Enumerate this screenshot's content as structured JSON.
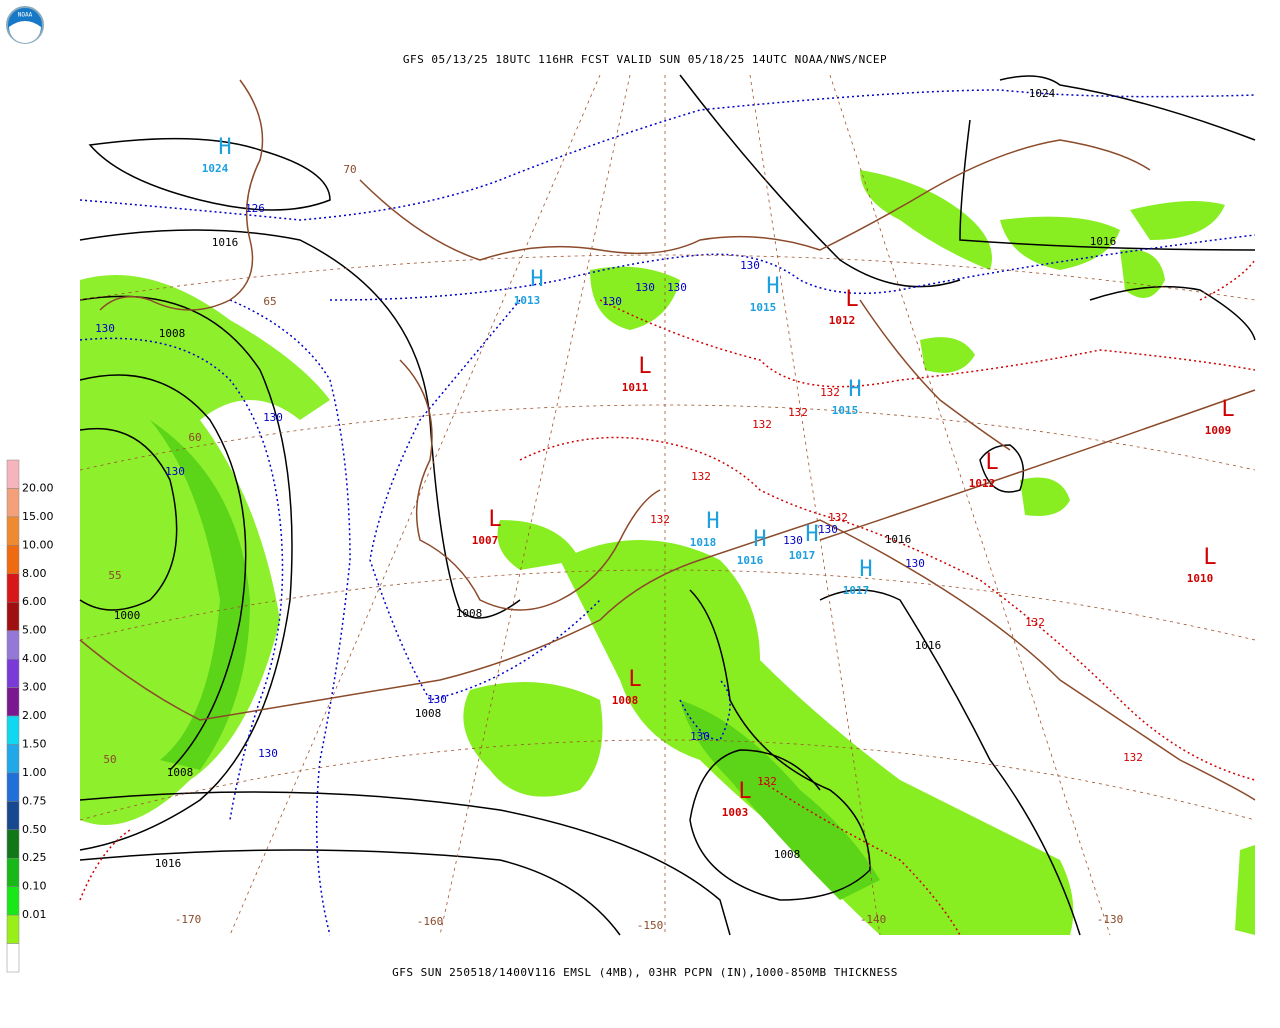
{
  "header": {
    "title": "GFS 05/13/25 18UTC 116HR FCST VALID SUN 05/18/25 14UTC NOAA/NWS/NCEP",
    "logo": "NOAA"
  },
  "footer": {
    "caption": "GFS SUN 250518/1400V116 EMSL (4MB), 03HR PCPN (IN),1000-850MB THICKNESS"
  },
  "legend": {
    "labels": [
      "20.00",
      "15.00",
      "10.00",
      "8.00",
      "6.00",
      "5.00",
      "4.00",
      "3.00",
      "2.00",
      "1.50",
      "1.00",
      "0.75",
      "0.50",
      "0.25",
      "0.10",
      "0.01"
    ],
    "colors": [
      "#f6b5bd",
      "#f4a07a",
      "#f08a30",
      "#f06a10",
      "#d81818",
      "#a01010",
      "#9478d8",
      "#7a3ad8",
      "#7a1890",
      "#10d8f0",
      "#20a8e8",
      "#2070d8",
      "#184890",
      "#107818",
      "#18b818",
      "#18e818",
      "#98f018",
      "#ffffff"
    ]
  },
  "map": {
    "pressure_centers": [
      {
        "letter": "H",
        "value": "1024"
      },
      {
        "letter": "H",
        "value": "1013"
      },
      {
        "letter": "H",
        "value": "1015"
      },
      {
        "letter": "L",
        "value": "1012"
      },
      {
        "letter": "L",
        "value": "1011"
      },
      {
        "letter": "H",
        "value": "1015"
      },
      {
        "letter": "L",
        "value": "1009"
      },
      {
        "letter": "L",
        "value": "1012"
      },
      {
        "letter": "L",
        "value": "1007"
      },
      {
        "letter": "H",
        "value": "1018"
      },
      {
        "letter": "H",
        "value": "1016"
      },
      {
        "letter": "H",
        "value": "1017"
      },
      {
        "letter": "H",
        "value": "1017"
      },
      {
        "letter": "L",
        "value": "1010"
      },
      {
        "letter": "L",
        "value": "1008"
      },
      {
        "letter": "L",
        "value": "1003"
      }
    ],
    "isobar_labels": [
      "1024",
      "1016",
      "1016",
      "1008",
      "1000",
      "1008",
      "1008",
      "1008",
      "1016",
      "1008",
      "1016",
      "1016"
    ],
    "thickness_labels": [
      "126",
      "130",
      "130",
      "130",
      "130",
      "130",
      "130",
      "130",
      "130",
      "130",
      "130",
      "130",
      "130",
      "130"
    ],
    "warm_thickness_labels": [
      "132",
      "132",
      "132",
      "132",
      "132",
      "132",
      "132",
      "132",
      "132"
    ],
    "latitude_labels": [
      "70",
      "65",
      "60",
      "55",
      "50"
    ],
    "longitude_labels": [
      "-170",
      "-160",
      "-150",
      "-140",
      "-130"
    ]
  }
}
